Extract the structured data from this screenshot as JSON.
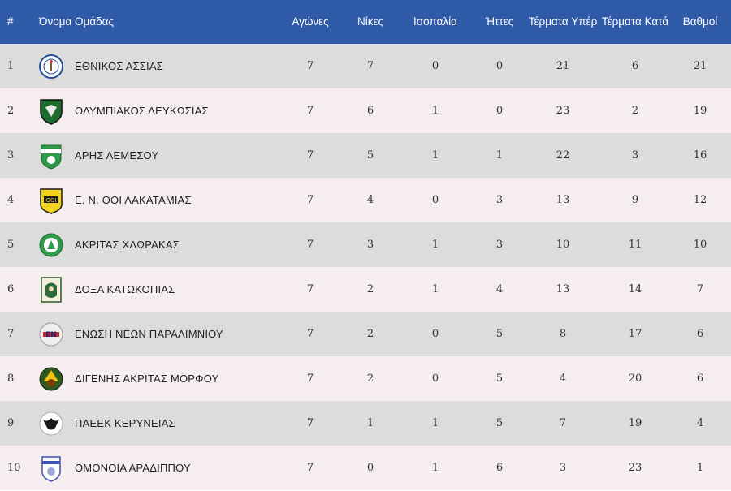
{
  "header": {
    "pos": "#",
    "team": "Όνομα Ομάδας",
    "played": "Αγώνες",
    "wins": "Νίκες",
    "draws": "Ισοπαλία",
    "losses": "Ήττες",
    "gf": "Τέρματα Υπέρ",
    "ga": "Τέρματα Κατά",
    "pts": "Βαθμοί"
  },
  "rows": [
    {
      "pos": "1",
      "team": "ΕΘΝΙΚΟΣ ΑΣΣΙΑΣ",
      "played": "7",
      "wins": "7",
      "draws": "0",
      "losses": "0",
      "gf": "21",
      "ga": "6",
      "pts": "21",
      "logo": "ethnikos-assias-logo"
    },
    {
      "pos": "2",
      "team": "ΟΛΥΜΠΙΑΚΟΣ ΛΕΥΚΩΣΙΑΣ",
      "played": "7",
      "wins": "6",
      "draws": "1",
      "losses": "0",
      "gf": "23",
      "ga": "2",
      "pts": "19",
      "logo": "olympiakos-logo"
    },
    {
      "pos": "3",
      "team": "ΑΡΗΣ ΛΕΜΕΣΟΥ",
      "played": "7",
      "wins": "5",
      "draws": "1",
      "losses": "1",
      "gf": "22",
      "ga": "3",
      "pts": "16",
      "logo": "aris-logo"
    },
    {
      "pos": "4",
      "team": "Ε. Ν. ΘΟΙ ΛΑΚΑΤΑΜΙΑΣ",
      "played": "7",
      "wins": "4",
      "draws": "0",
      "losses": "3",
      "gf": "13",
      "ga": "9",
      "pts": "12",
      "logo": "thoi-logo"
    },
    {
      "pos": "5",
      "team": "ΑΚΡΙΤΑΣ ΧΛΩΡΑΚΑΣ",
      "played": "7",
      "wins": "3",
      "draws": "1",
      "losses": "3",
      "gf": "10",
      "ga": "11",
      "pts": "10",
      "logo": "akritas-logo"
    },
    {
      "pos": "6",
      "team": "ΔΟΞΑ ΚΑΤΩΚΟΠΙΑΣ",
      "played": "7",
      "wins": "2",
      "draws": "1",
      "losses": "4",
      "gf": "13",
      "ga": "14",
      "pts": "7",
      "logo": "doxa-logo"
    },
    {
      "pos": "7",
      "team": "ΕΝΩΣΗ ΝΕΩΝ ΠΑΡΑΛΙΜΝΙΟΥ",
      "played": "7",
      "wins": "2",
      "draws": "0",
      "losses": "5",
      "gf": "8",
      "ga": "17",
      "pts": "6",
      "logo": "enp-logo"
    },
    {
      "pos": "8",
      "team": "ΔΙΓΕΝΗΣ ΑΚΡΙΤΑΣ ΜΟΡΦΟΥ",
      "played": "7",
      "wins": "2",
      "draws": "0",
      "losses": "5",
      "gf": "4",
      "ga": "20",
      "pts": "6",
      "logo": "digenis-logo"
    },
    {
      "pos": "9",
      "team": "ΠΑΕΕΚ ΚΕΡΥΝΕΙΑΣ",
      "played": "7",
      "wins": "1",
      "draws": "1",
      "losses": "5",
      "gf": "7",
      "ga": "19",
      "pts": "4",
      "logo": "paeek-logo"
    },
    {
      "pos": "10",
      "team": "ΟΜΟΝΟΙΑ ΑΡΑΔΙΠΠΟΥ",
      "played": "7",
      "wins": "0",
      "draws": "1",
      "losses": "6",
      "gf": "3",
      "ga": "23",
      "pts": "1",
      "logo": "omonoia-aradippou-logo"
    }
  ],
  "colors": {
    "header": "#2f5aa8",
    "row_odd": "#dcdcdc",
    "row_even": "#f6eeee"
  }
}
